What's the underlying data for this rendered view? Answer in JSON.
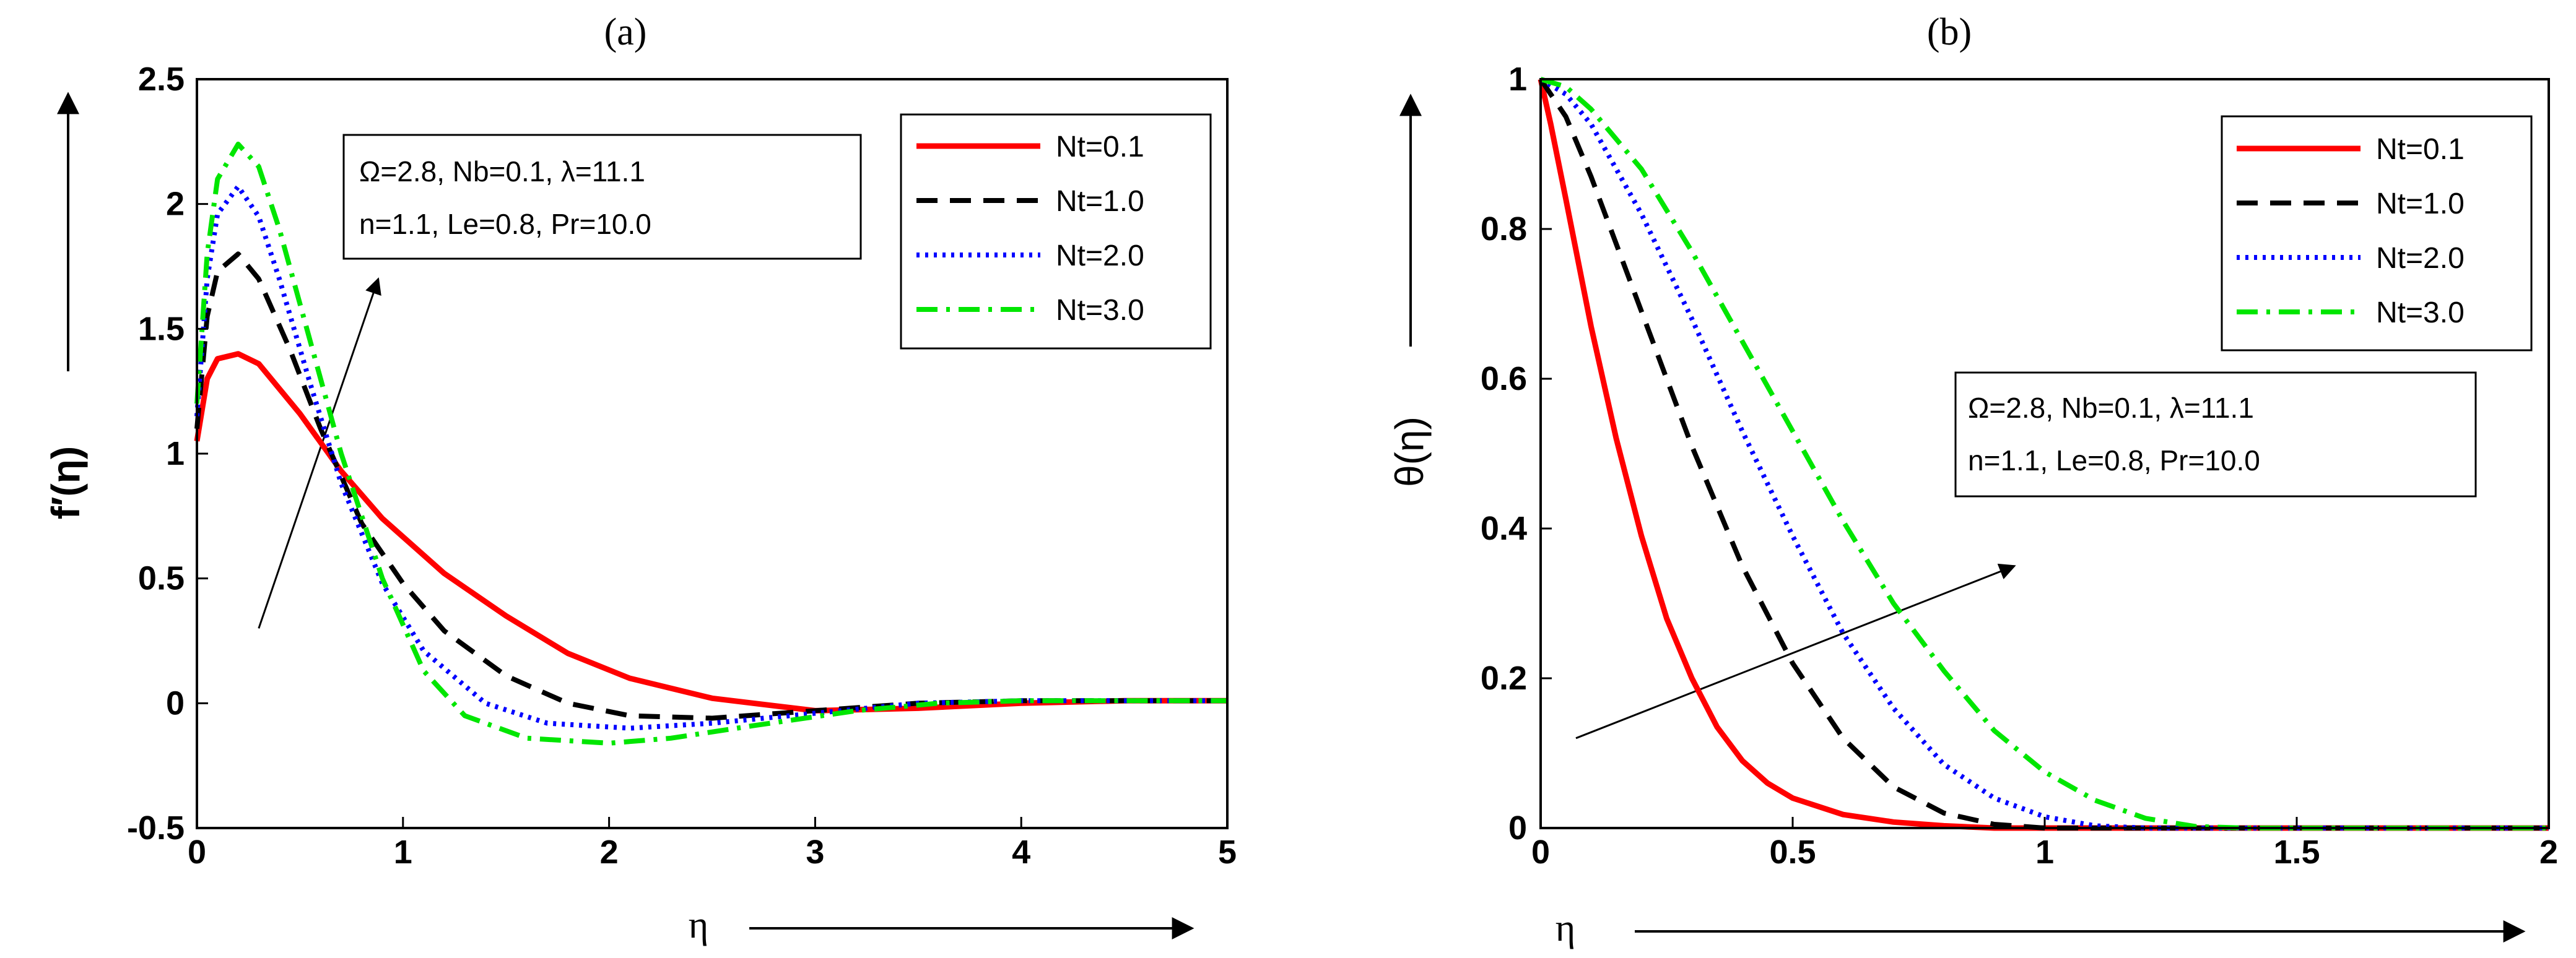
{
  "chart_data": [
    {
      "panel": "(a)",
      "type": "line",
      "title": "",
      "xlabel": "η",
      "ylabel": "f′(η)",
      "xlim": [
        0,
        5
      ],
      "ylim": [
        -0.5,
        2.5
      ],
      "xticks": [
        "0",
        "1",
        "2",
        "3",
        "4",
        "5"
      ],
      "yticks": [
        "-0.5",
        "0",
        "0.5",
        "1",
        "1.5",
        "2",
        "2.5"
      ],
      "xtick_values": [
        0,
        1,
        2,
        3,
        4,
        5
      ],
      "ytick_values": [
        -0.5,
        0,
        0.5,
        1,
        1.5,
        2,
        2.5
      ],
      "annotation": [
        "Ω=2.8, Nb=0.1, λ=11.1",
        "n=1.1, Le=0.8, Pr=10.0"
      ],
      "arrow": {
        "from": [
          0.3,
          0.3
        ],
        "to": [
          0.88,
          1.7
        ]
      },
      "series": [
        {
          "name": "Nt=0.1",
          "color": "#ff0000",
          "dash": "solid",
          "x": [
            0,
            0.05,
            0.1,
            0.2,
            0.3,
            0.5,
            0.7,
            0.9,
            1.2,
            1.5,
            1.8,
            2.1,
            2.5,
            3.0,
            3.5,
            4.0,
            4.5,
            5.0
          ],
          "y": [
            1.05,
            1.3,
            1.38,
            1.4,
            1.36,
            1.16,
            0.93,
            0.74,
            0.52,
            0.35,
            0.2,
            0.1,
            0.02,
            -0.03,
            -0.02,
            0.0,
            0.01,
            0.01
          ]
        },
        {
          "name": "Nt=1.0",
          "color": "#000000",
          "dash": "dashed",
          "x": [
            0,
            0.05,
            0.1,
            0.2,
            0.3,
            0.45,
            0.6,
            0.8,
            1.0,
            1.2,
            1.5,
            1.8,
            2.1,
            2.5,
            3.0,
            3.5,
            4.0,
            4.5,
            5.0
          ],
          "y": [
            1.1,
            1.55,
            1.73,
            1.8,
            1.7,
            1.42,
            1.1,
            0.72,
            0.48,
            0.29,
            0.11,
            0.0,
            -0.05,
            -0.06,
            -0.03,
            0.0,
            0.01,
            0.01,
            0.01
          ]
        },
        {
          "name": "Nt=2.0",
          "color": "#0000ff",
          "dash": "dotted",
          "x": [
            0,
            0.05,
            0.1,
            0.2,
            0.3,
            0.4,
            0.55,
            0.7,
            0.9,
            1.1,
            1.4,
            1.7,
            2.1,
            2.5,
            3.0,
            3.5,
            4.0,
            4.5,
            5.0
          ],
          "y": [
            1.15,
            1.7,
            1.96,
            2.07,
            1.95,
            1.7,
            1.28,
            0.88,
            0.48,
            0.21,
            0.0,
            -0.08,
            -0.1,
            -0.08,
            -0.04,
            0.0,
            0.01,
            0.01,
            0.01
          ]
        },
        {
          "name": "Nt=3.0",
          "color": "#00e600",
          "dash": "dashdot",
          "x": [
            0,
            0.05,
            0.1,
            0.2,
            0.3,
            0.4,
            0.5,
            0.7,
            0.9,
            1.1,
            1.3,
            1.6,
            2.0,
            2.3,
            2.7,
            3.2,
            3.6,
            4.0,
            4.5,
            5.0
          ],
          "y": [
            1.2,
            1.8,
            2.1,
            2.24,
            2.15,
            1.9,
            1.6,
            1.0,
            0.5,
            0.13,
            -0.05,
            -0.14,
            -0.16,
            -0.14,
            -0.09,
            -0.03,
            0.0,
            0.01,
            0.01,
            0.01
          ]
        }
      ]
    },
    {
      "panel": "(b)",
      "type": "line",
      "title": "",
      "xlabel": "η",
      "ylabel": "θ(η)",
      "xlim": [
        0,
        2
      ],
      "ylim": [
        0,
        1
      ],
      "xticks": [
        "0",
        "0.5",
        "1",
        "1.5",
        "2"
      ],
      "yticks": [
        "0",
        "0.2",
        "0.4",
        "0.6",
        "0.8",
        "1"
      ],
      "xtick_values": [
        0,
        0.5,
        1,
        1.5,
        2
      ],
      "ytick_values": [
        0,
        0.2,
        0.4,
        0.6,
        0.8,
        1
      ],
      "annotation": [
        "Ω=2.8, Nb=0.1, λ=11.1",
        "n=1.1, Le=0.8, Pr=10.0"
      ],
      "arrow": {
        "from": [
          0.07,
          0.12
        ],
        "to": [
          0.94,
          0.35
        ]
      },
      "series": [
        {
          "name": "Nt=0.1",
          "color": "#ff0000",
          "dash": "solid",
          "x": [
            0,
            0.02,
            0.05,
            0.1,
            0.15,
            0.2,
            0.25,
            0.3,
            0.35,
            0.4,
            0.45,
            0.5,
            0.6,
            0.7,
            0.8,
            0.9,
            1.0,
            1.5,
            2.0
          ],
          "y": [
            1.0,
            0.94,
            0.84,
            0.67,
            0.52,
            0.39,
            0.28,
            0.2,
            0.135,
            0.09,
            0.06,
            0.04,
            0.018,
            0.008,
            0.003,
            0.0,
            0.0,
            0.0,
            0.0
          ]
        },
        {
          "name": "Nt=1.0",
          "color": "#000000",
          "dash": "dashed",
          "x": [
            0,
            0.05,
            0.1,
            0.15,
            0.2,
            0.3,
            0.4,
            0.5,
            0.6,
            0.7,
            0.8,
            0.9,
            1.0,
            1.1,
            1.5,
            2.0
          ],
          "y": [
            1.0,
            0.95,
            0.87,
            0.78,
            0.69,
            0.51,
            0.35,
            0.22,
            0.12,
            0.055,
            0.02,
            0.005,
            0.0,
            0.0,
            0.0,
            0.0
          ]
        },
        {
          "name": "Nt=2.0",
          "color": "#0000ff",
          "dash": "dotted",
          "x": [
            0,
            0.05,
            0.1,
            0.2,
            0.3,
            0.4,
            0.5,
            0.6,
            0.7,
            0.8,
            0.9,
            1.0,
            1.1,
            1.2,
            1.5,
            2.0
          ],
          "y": [
            1.0,
            0.98,
            0.94,
            0.82,
            0.68,
            0.53,
            0.39,
            0.26,
            0.16,
            0.085,
            0.04,
            0.015,
            0.003,
            0.0,
            0.0,
            0.0
          ]
        },
        {
          "name": "Nt=3.0",
          "color": "#00e600",
          "dash": "dashdot",
          "x": [
            0,
            0.05,
            0.1,
            0.2,
            0.3,
            0.4,
            0.5,
            0.6,
            0.7,
            0.8,
            0.9,
            1.0,
            1.1,
            1.2,
            1.3,
            1.4,
            1.5,
            2.0
          ],
          "y": [
            1.0,
            0.99,
            0.96,
            0.88,
            0.77,
            0.65,
            0.53,
            0.41,
            0.3,
            0.21,
            0.13,
            0.075,
            0.037,
            0.013,
            0.002,
            0.0,
            0.0,
            0.0
          ]
        }
      ]
    }
  ]
}
